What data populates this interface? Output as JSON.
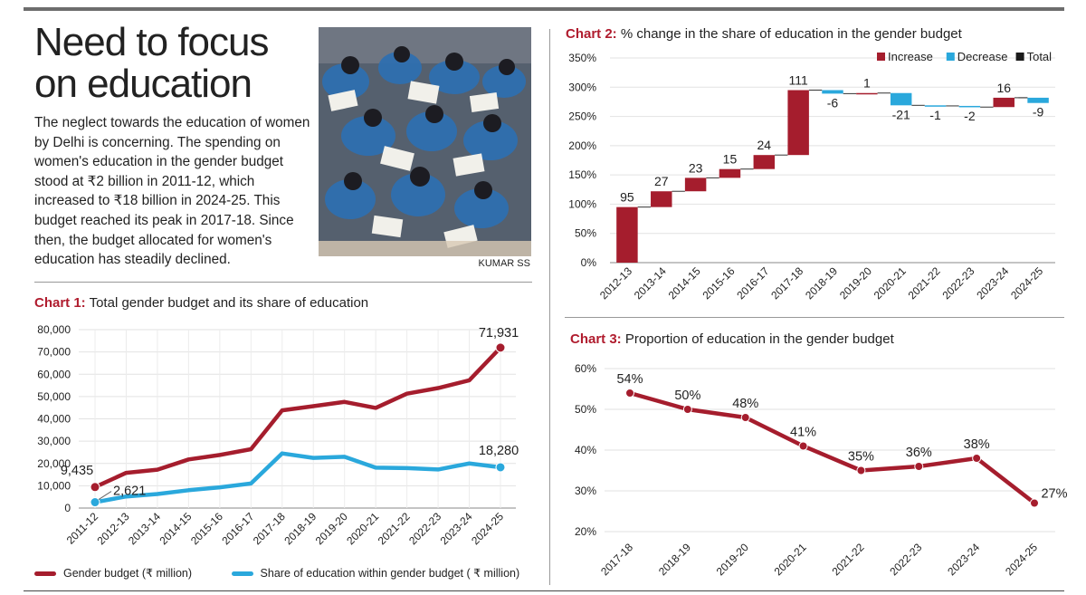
{
  "headline": "Need to focus on education",
  "intro": "The neglect towards the education of women by Delhi is concerning. The spending on women's education in the gender budget stood at ₹2 billion in 2011-12, which increased to ₹18 billion in 2024-25. This budget reached its peak in 2017-18. Since then, the budget allocated for women's education has steadily declined.",
  "photo_credit": "KUMAR SS",
  "colors": {
    "gender": "#a51d2d",
    "education": "#2aa8dc",
    "total": "#1a1a1a",
    "accent": "#b01c2e"
  },
  "chart_data": [
    {
      "type": "line",
      "title_num": "Chart 1:",
      "title": "Total gender budget and its share of education",
      "categories": [
        "2011-12",
        "2012-13",
        "2013-14",
        "2014-15",
        "2015-16",
        "2016-17",
        "2017-18",
        "2018-19",
        "2019-20",
        "2020-21",
        "2021-22",
        "2022-23",
        "2023-24",
        "2024-25"
      ],
      "ylim": [
        0,
        80000
      ],
      "yticks": [
        "0",
        "10,000",
        "20,000",
        "30,000",
        "40,000",
        "50,000",
        "60,000",
        "70,000",
        "80,000"
      ],
      "grid": true,
      "legend": "bottom",
      "series": [
        {
          "name": "Gender budget (₹ million)",
          "values": [
            9435,
            15800,
            17200,
            21800,
            23800,
            26400,
            43800,
            45700,
            47600,
            44900,
            51300,
            53800,
            57300,
            71931
          ]
        },
        {
          "name": "Share of education within gender budget ( ₹ million)",
          "values": [
            2621,
            5200,
            6300,
            8000,
            9300,
            11000,
            24500,
            22500,
            23000,
            18100,
            17900,
            17300,
            20000,
            18280
          ]
        }
      ],
      "data_labels": [
        {
          "series": 0,
          "index": 0,
          "text": "9,435"
        },
        {
          "series": 1,
          "index": 0,
          "text": "2,621"
        },
        {
          "series": 0,
          "index": 13,
          "text": "71,931"
        },
        {
          "series": 1,
          "index": 13,
          "text": "18,280"
        }
      ]
    },
    {
      "type": "bar",
      "subtype": "waterfall",
      "title_num": "Chart 2:",
      "title": "% change in the share of education in the gender budget",
      "categories": [
        "2012-13",
        "2013-14",
        "2014-15",
        "2015-16",
        "2016-17",
        "2017-18",
        "2018-19",
        "2019-20",
        "2020-21",
        "2021-22",
        "2022-23",
        "2023-24",
        "2024-25"
      ],
      "values": [
        95,
        27,
        23,
        15,
        24,
        111,
        -6,
        1,
        -21,
        -1,
        -2,
        16,
        -9
      ],
      "labels": [
        "95",
        "27",
        "23",
        "15",
        "24",
        "111",
        "-6",
        "1",
        "-21",
        "-1",
        "-2",
        "16",
        "-9"
      ],
      "ylim": [
        0,
        350
      ],
      "yticks": [
        "0%",
        "50%",
        "100%",
        "150%",
        "200%",
        "250%",
        "300%",
        "350%"
      ],
      "grid": true,
      "legend": "top-right",
      "legend_items": [
        {
          "name": "Increase",
          "color": "#a51d2d"
        },
        {
          "name": "Decrease",
          "color": "#2aa8dc"
        },
        {
          "name": "Total",
          "color": "#1a1a1a"
        }
      ]
    },
    {
      "type": "line",
      "title_num": "Chart 3:",
      "title": "Proportion of education in the gender budget",
      "categories": [
        "2017-18",
        "2018-19",
        "2019-20",
        "2020-21",
        "2021-22",
        "2022-23",
        "2023-24",
        "2024-25"
      ],
      "values": [
        54,
        50,
        48,
        41,
        35,
        36,
        38,
        27
      ],
      "labels": [
        "54%",
        "50%",
        "48%",
        "41%",
        "35%",
        "36%",
        "38%",
        "27%"
      ],
      "ylim": [
        20,
        60
      ],
      "yticks": [
        "20%",
        "30%",
        "40%",
        "50%",
        "60%"
      ],
      "grid": true
    }
  ]
}
